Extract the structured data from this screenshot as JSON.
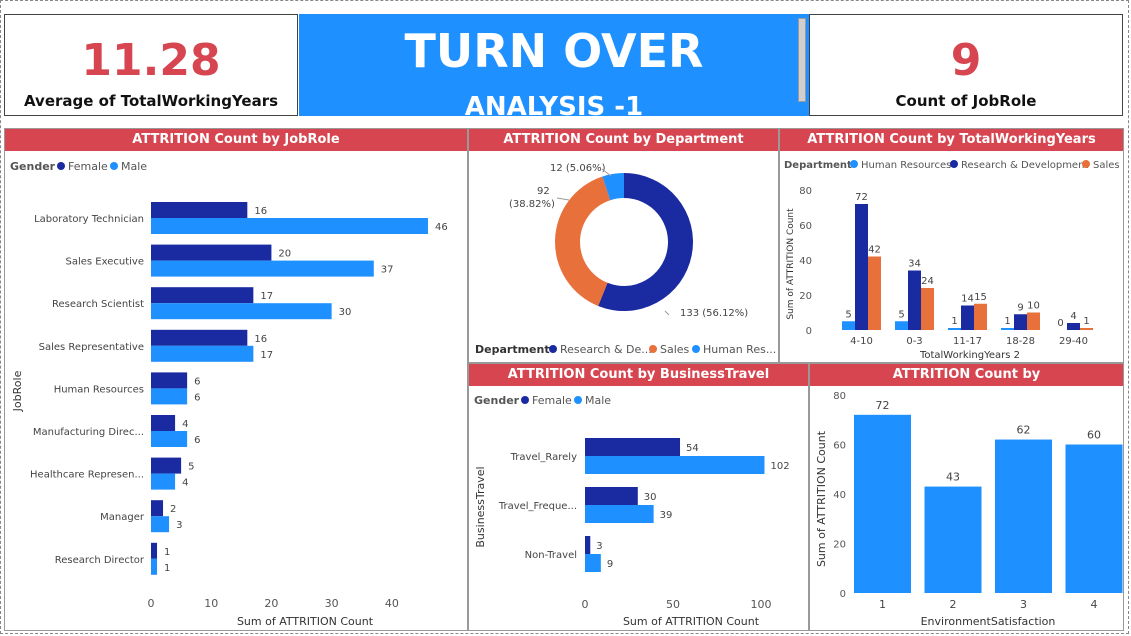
{
  "kpis": {
    "left": {
      "value": "11.28",
      "label": "Average of TotalWorkingYears"
    },
    "right": {
      "value": "9",
      "label": "Count of JobRole"
    }
  },
  "banner": {
    "line1": "TURN OVER",
    "line2": "ANALYSIS -1"
  },
  "colors": {
    "dark_blue": "#1a2aa0",
    "light_blue": "#1e90ff",
    "orange": "#e8703a",
    "title_red": "#d64550"
  },
  "jobrole_chart": {
    "title": "ATTRITION Count by JobRole",
    "legend_title": "Gender",
    "legend": [
      "Female",
      "Male"
    ],
    "ylabel": "JobRole",
    "xlabel": "Sum of ATTRITION Count",
    "xticks": [
      "0",
      "10",
      "20",
      "30",
      "40"
    ]
  },
  "department_chart": {
    "title": "ATTRITION Count by Department",
    "legend_title": "Department",
    "legend": [
      "Research & De...",
      "Sales",
      "Human Res..."
    ],
    "labels": [
      "133 (56.12%)",
      "92\n(38.82%)",
      "12 (5.06%)"
    ]
  },
  "years_chart": {
    "title": "ATTRITION Count by TotalWorkingYears",
    "legend_title": "Department",
    "legend": [
      "Human Resources",
      "Research & Development",
      "Sales"
    ],
    "ylabel": "Sum of ATTRITION Count",
    "xlabel": "TotalWorkingYears 2",
    "yticks": [
      "0",
      "20",
      "40",
      "60",
      "80"
    ]
  },
  "travel_chart": {
    "title": "ATTRITION Count by BusinessTravel",
    "legend_title": "Gender",
    "legend": [
      "Female",
      "Male"
    ],
    "ylabel": "BusinessTravel",
    "xlabel": "Sum of ATTRITION Count",
    "xticks": [
      "0",
      "50",
      "100"
    ]
  },
  "env_chart": {
    "title": "ATTRITION Count by EnvironmentSatisfaction",
    "ylabel": "Sum of ATTRITION Count",
    "xlabel": "EnvironmentSatisfaction",
    "yticks": [
      "0",
      "20",
      "40",
      "60",
      "80"
    ]
  },
  "chart_data": [
    {
      "type": "bar",
      "orientation": "horizontal",
      "title": "ATTRITION Count by JobRole",
      "categories": [
        "Laboratory Technician",
        "Sales Executive",
        "Research Scientist",
        "Sales Representative",
        "Human Resources",
        "Manufacturing Direc...",
        "Healthcare Represen...",
        "Manager",
        "Research Director"
      ],
      "series": [
        {
          "name": "Female",
          "values": [
            16,
            20,
            17,
            16,
            6,
            4,
            5,
            2,
            1
          ]
        },
        {
          "name": "Male",
          "values": [
            46,
            37,
            30,
            17,
            6,
            6,
            4,
            3,
            1
          ]
        }
      ],
      "xlim": [
        0,
        48
      ]
    },
    {
      "type": "pie",
      "title": "ATTRITION Count by Department",
      "categories": [
        "Research & Development",
        "Sales",
        "Human Resources"
      ],
      "values": [
        133,
        92,
        12
      ]
    },
    {
      "type": "bar",
      "title": "ATTRITION Count by TotalWorkingYears",
      "categories": [
        "4-10",
        "0-3",
        "11-17",
        "18-28",
        "29-40"
      ],
      "series": [
        {
          "name": "Human Resources",
          "values": [
            5,
            5,
            1,
            1,
            0
          ]
        },
        {
          "name": "Research & Development",
          "values": [
            72,
            34,
            14,
            9,
            4
          ]
        },
        {
          "name": "Sales",
          "values": [
            42,
            24,
            15,
            10,
            1
          ]
        }
      ],
      "ylim": [
        0,
        80
      ]
    },
    {
      "type": "bar",
      "orientation": "horizontal",
      "title": "ATTRITION Count by BusinessTravel",
      "categories": [
        "Travel_Rarely",
        "Travel_Freque...",
        "Non-Travel"
      ],
      "series": [
        {
          "name": "Female",
          "values": [
            54,
            30,
            3
          ]
        },
        {
          "name": "Male",
          "values": [
            102,
            39,
            9
          ]
        }
      ],
      "xlim": [
        0,
        104
      ]
    },
    {
      "type": "bar",
      "title": "ATTRITION Count by EnvironmentSatisfaction",
      "categories": [
        "1",
        "2",
        "3",
        "4"
      ],
      "values": [
        72,
        43,
        62,
        60
      ],
      "ylim": [
        0,
        80
      ]
    }
  ]
}
